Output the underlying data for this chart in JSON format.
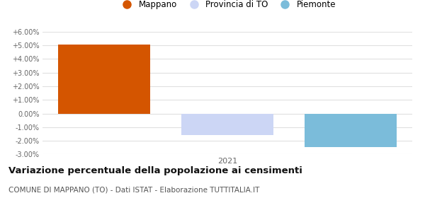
{
  "year": "2021",
  "categories": [
    "Mappano",
    "Provincia di TO",
    "Piemonte"
  ],
  "values": [
    5.05,
    -1.6,
    -2.45
  ],
  "colors": [
    "#d45500",
    "#ccd6f5",
    "#7bbcda"
  ],
  "ylim": [
    -3.0,
    6.0
  ],
  "yticks": [
    -3.0,
    -2.0,
    -1.0,
    0.0,
    1.0,
    2.0,
    3.0,
    4.0,
    5.0,
    6.0
  ],
  "title": "Variazione percentuale della popolazione ai censimenti",
  "subtitle": "COMUNE DI MAPPANO (TO) - Dati ISTAT - Elaborazione TUTTITALIA.IT",
  "background_color": "#ffffff",
  "grid_color": "#e0e0e0",
  "bar_width": 0.75,
  "x_positions": [
    0.5,
    1.5,
    2.5
  ],
  "xlim": [
    0,
    3
  ]
}
